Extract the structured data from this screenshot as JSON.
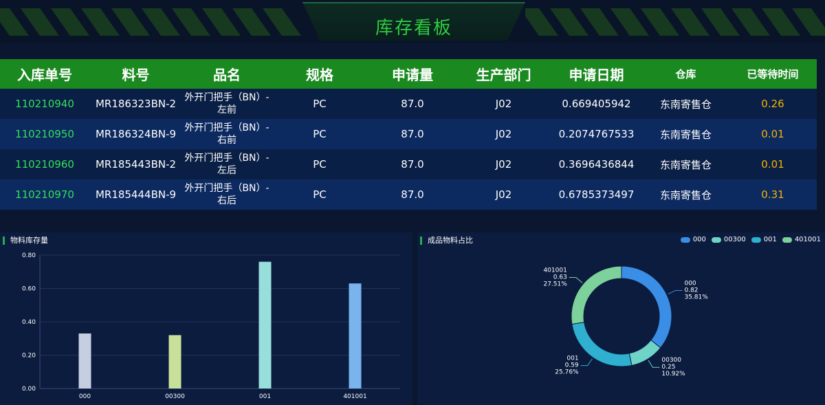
{
  "header": {
    "title": "库存看板"
  },
  "table": {
    "columns": [
      "入库单号",
      "料号",
      "品名",
      "规格",
      "申请量",
      "生产部门",
      "申请日期",
      "仓库",
      "已等待时间"
    ],
    "rows": [
      {
        "id": "110210940",
        "part": "MR186323BN-2",
        "name1": "外开门把手（BN）-",
        "name2": "左前",
        "spec": "PC",
        "qty": "87.0",
        "dept": "J02",
        "date": "0.669405942",
        "warehouse": "东南寄售仓",
        "wait": "0.26"
      },
      {
        "id": "110210950",
        "part": "MR186324BN-9",
        "name1": "外开门把手（BN）-",
        "name2": "右前",
        "spec": "PC",
        "qty": "87.0",
        "dept": "J02",
        "date": "0.2074767533",
        "warehouse": "东南寄售仓",
        "wait": "0.01"
      },
      {
        "id": "110210960",
        "part": "MR185443BN-2",
        "name1": "外开门把手（BN）-",
        "name2": "左后",
        "spec": "PC",
        "qty": "87.0",
        "dept": "J02",
        "date": "0.3696436844",
        "warehouse": "东南寄售仓",
        "wait": "0.01"
      },
      {
        "id": "110210970",
        "part": "MR185444BN-9",
        "name1": "外开门把手（BN）-",
        "name2": "右后",
        "spec": "PC",
        "qty": "87.0",
        "dept": "J02",
        "date": "0.6785373497",
        "warehouse": "东南寄售仓",
        "wait": "0.31"
      }
    ]
  },
  "bar_panel": {
    "title": "物料库存量"
  },
  "pie_panel": {
    "title": "成品物料占比"
  },
  "chart_data": [
    {
      "type": "bar",
      "title": "物料库存量",
      "categories": [
        "000",
        "00300",
        "001",
        "401001"
      ],
      "values": [
        0.33,
        0.32,
        0.76,
        0.63
      ],
      "colors": [
        "#c5cfdf",
        "#c8e09a",
        "#98dedb",
        "#7ab4ee"
      ],
      "ylim": [
        0,
        0.8
      ],
      "yticks": [
        "0.00",
        "0.20",
        "0.40",
        "0.60",
        "0.80"
      ],
      "grid": true
    },
    {
      "type": "pie",
      "title": "成品物料占比",
      "legend_position": "top-right",
      "slices": [
        {
          "name": "000",
          "value": 0.82,
          "percent": "35.81%",
          "value_label": "0.82",
          "color": "#3a8ee6"
        },
        {
          "name": "00300",
          "value": 0.25,
          "percent": "10.92%",
          "value_label": "0.25",
          "color": "#6fd3c8"
        },
        {
          "name": "001",
          "value": 0.59,
          "percent": "25.76%",
          "value_label": "0.59",
          "color": "#2fb0d0"
        },
        {
          "name": "401001",
          "value": 0.63,
          "percent": "27.51%",
          "value_label": "0.63",
          "color": "#7dd19a"
        }
      ]
    }
  ]
}
